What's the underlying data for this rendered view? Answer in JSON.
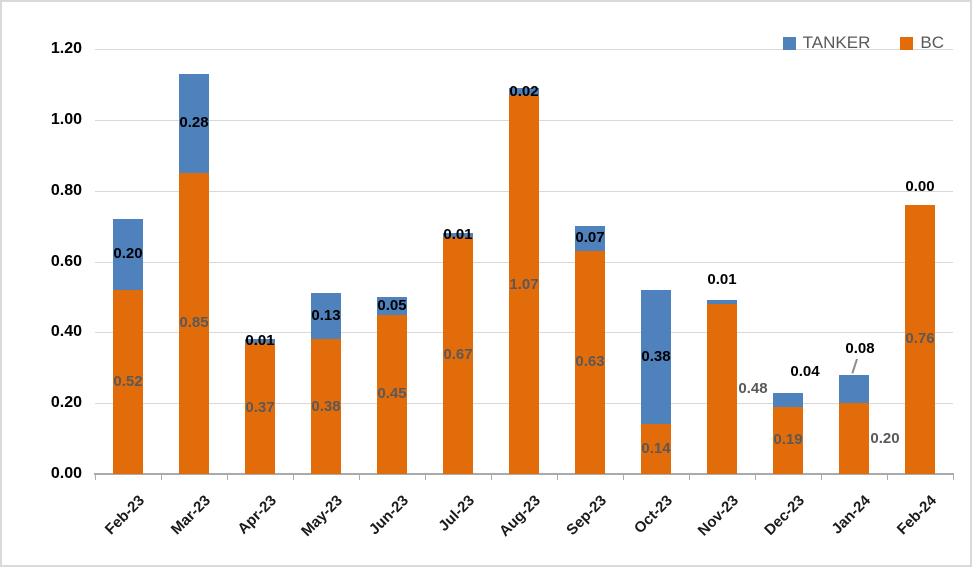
{
  "chart_data": {
    "type": "bar",
    "stacked": true,
    "title": "",
    "categories": [
      "Feb-23",
      "Mar-23",
      "Apr-23",
      "May-23",
      "Jun-23",
      "Jul-23",
      "Aug-23",
      "Sep-23",
      "Oct-23",
      "Nov-23",
      "Dec-23",
      "Jan-24",
      "Feb-24"
    ],
    "series": [
      {
        "name": "TANKER",
        "color": "#4F81BD",
        "values": [
          0.2,
          0.28,
          0.01,
          0.13,
          0.05,
          0.01,
          0.02,
          0.07,
          0.38,
          0.01,
          0.04,
          0.08,
          0.0
        ]
      },
      {
        "name": "BC",
        "color": "#E36C0A",
        "values": [
          0.52,
          0.85,
          0.37,
          0.38,
          0.45,
          0.67,
          1.07,
          0.63,
          0.14,
          0.48,
          0.19,
          0.2,
          0.76
        ]
      }
    ],
    "stack_order_bottom_to_top": [
      "BC",
      "TANKER"
    ],
    "ylim": [
      0,
      1.2
    ],
    "ytick_step": 0.2,
    "ytick_labels": [
      "0.00",
      "0.20",
      "0.40",
      "0.60",
      "0.80",
      "1.00",
      "1.20"
    ],
    "value_format_decimals": 2,
    "grid": "horizontal",
    "gridline_color": "#D9D9D9",
    "axis_line_color": "#ABABAB",
    "legend_position": "top-right",
    "label_colors": {
      "TANKER": "#000000",
      "BC": "#595959"
    },
    "label_overrides": {
      "TANKER": {
        "9": {
          "dy": -22
        },
        "10": {
          "dx": 17,
          "dy": -28
        },
        "11": {
          "dx": 6,
          "dy": -40,
          "leader": true
        },
        "12": {
          "dy": -18
        }
      },
      "BC": {
        "9": {
          "dx": 31
        },
        "11": {
          "dx": 31
        }
      }
    }
  }
}
